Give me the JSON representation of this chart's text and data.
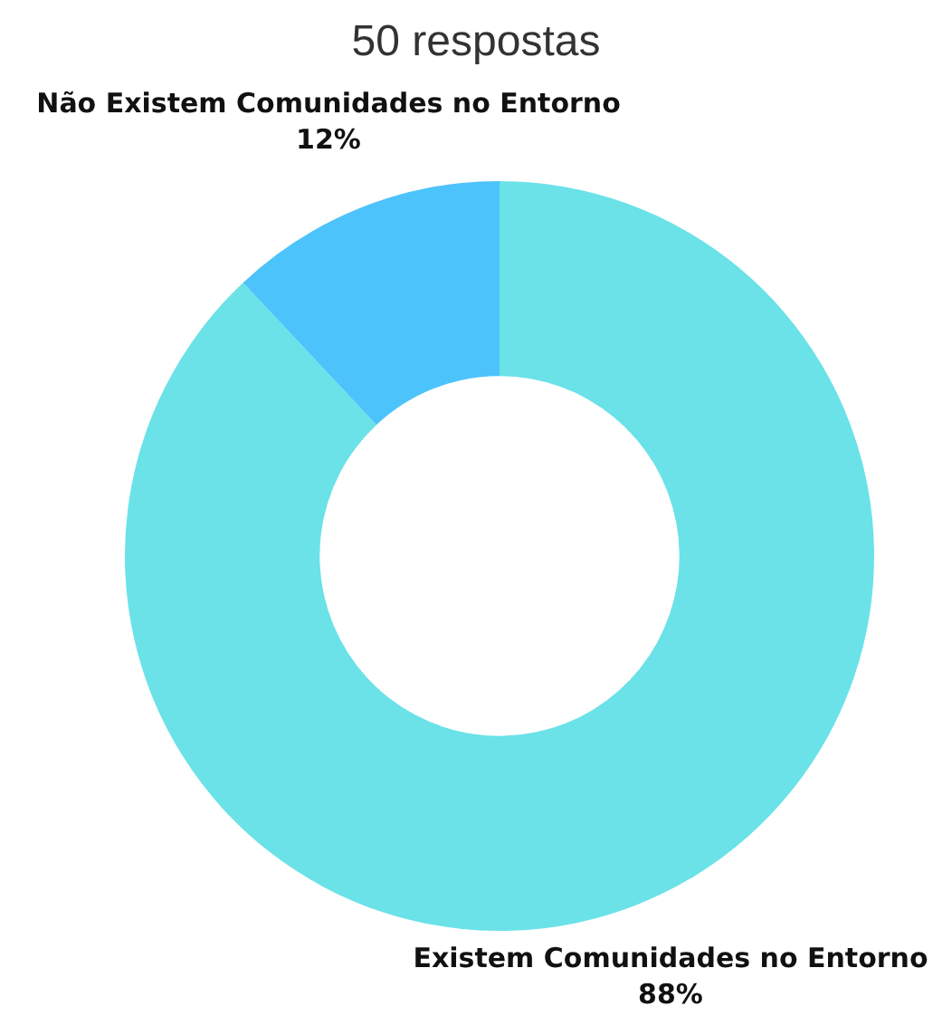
{
  "chart_data": {
    "type": "donut",
    "title": "50 respostas",
    "categories": [
      "Existem Comunidades no Entorno",
      "Não Existem Comunidades no Entorno"
    ],
    "values": [
      88,
      12
    ],
    "colors": [
      "#6ae2e8",
      "#4dc3fb"
    ],
    "value_labels": [
      "88%",
      "12%"
    ],
    "legend": false
  }
}
